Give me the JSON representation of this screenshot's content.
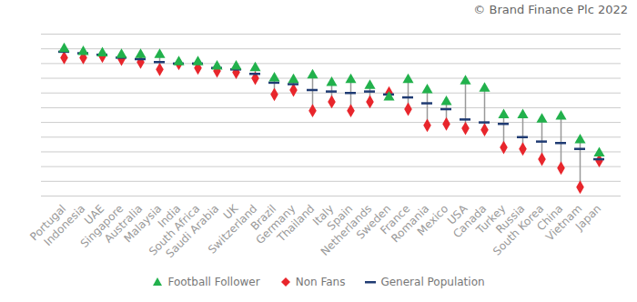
{
  "chart_data": {
    "type": "dot_range",
    "annotation": "© Brand Finance Plc 2022",
    "categories": [
      "Portugal",
      "Indonesia",
      "UAE",
      "Singapore",
      "Australia",
      "Malaysia",
      "India",
      "South Africa",
      "Saudi Arabia",
      "UK",
      "Switzerland",
      "Brazil",
      "Germany",
      "Thailand",
      "Italy",
      "Spain",
      "Netherlands",
      "Sweden",
      "France",
      "Romania",
      "Mexico",
      "USA",
      "Canada",
      "Turkey",
      "Russia",
      "South Korea",
      "China",
      "Vietnam",
      "Japan"
    ],
    "series": [
      {
        "name": "Football Follower",
        "color": "#22b14c",
        "marker": "triangle",
        "values": [
          10.0,
          9.8,
          9.7,
          9.6,
          9.6,
          9.6,
          9.1,
          9.1,
          8.8,
          8.8,
          8.7,
          8.0,
          7.9,
          8.2,
          7.7,
          7.9,
          7.5,
          6.7,
          7.9,
          7.2,
          6.4,
          7.8,
          7.3,
          5.5,
          5.5,
          5.2,
          5.4,
          3.8,
          2.9
        ]
      },
      {
        "name": "Non Fans",
        "color": "#e8262c",
        "marker": "diamond",
        "values": [
          9.4,
          9.4,
          9.5,
          9.3,
          9.1,
          8.6,
          9.0,
          8.7,
          8.5,
          8.4,
          8.0,
          6.9,
          7.2,
          5.8,
          6.4,
          5.8,
          6.4,
          7.0,
          5.9,
          4.8,
          4.9,
          4.6,
          4.5,
          3.3,
          3.2,
          2.5,
          1.9,
          0.6,
          2.4
        ]
      },
      {
        "name": "General Population",
        "color": "#1f3b73",
        "marker": "dash",
        "values": [
          9.8,
          9.7,
          9.6,
          9.4,
          9.3,
          9.1,
          9.0,
          9.0,
          8.7,
          8.6,
          8.3,
          7.7,
          7.6,
          7.2,
          7.1,
          7.0,
          7.1,
          6.9,
          6.7,
          6.3,
          5.9,
          5.2,
          5.0,
          4.9,
          4.0,
          3.7,
          3.6,
          3.2,
          2.5
        ]
      }
    ],
    "ylim": [
      0,
      11
    ],
    "yticks": [
      0,
      1,
      2,
      3,
      4,
      5,
      6,
      7,
      8,
      9,
      10,
      11
    ],
    "grid": true,
    "tick_labels": "x",
    "legend": "bottom"
  }
}
